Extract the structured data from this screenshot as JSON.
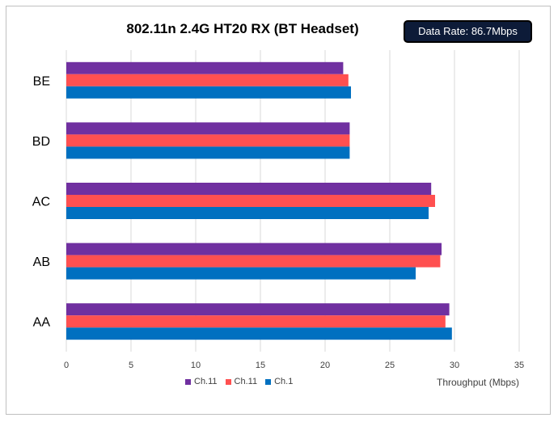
{
  "chart_data": {
    "type": "bar",
    "orientation": "horizontal",
    "title": "802.11n 2.4G HT20 RX (BT Headset)",
    "annotation": "Data Rate: 86.7Mbps",
    "xlabel": "Throughput (Mbps)",
    "ylabel": "",
    "xlim": [
      0,
      35
    ],
    "xticks": [
      0,
      5,
      10,
      15,
      20,
      25,
      30,
      35
    ],
    "grid": true,
    "legend_position": "bottom",
    "categories": [
      "BE",
      "BD",
      "AC",
      "AB",
      "AA"
    ],
    "series": [
      {
        "name": "Ch.11",
        "color": "#7030a0",
        "values": [
          21.4,
          21.9,
          28.2,
          29.0,
          29.6
        ]
      },
      {
        "name": "Ch.11",
        "color": "#ff5050",
        "values": [
          21.8,
          21.9,
          28.5,
          28.9,
          29.3
        ]
      },
      {
        "name": "Ch.1",
        "color": "#0070c0",
        "values": [
          22.0,
          21.9,
          28.0,
          27.0,
          29.8
        ]
      }
    ]
  }
}
